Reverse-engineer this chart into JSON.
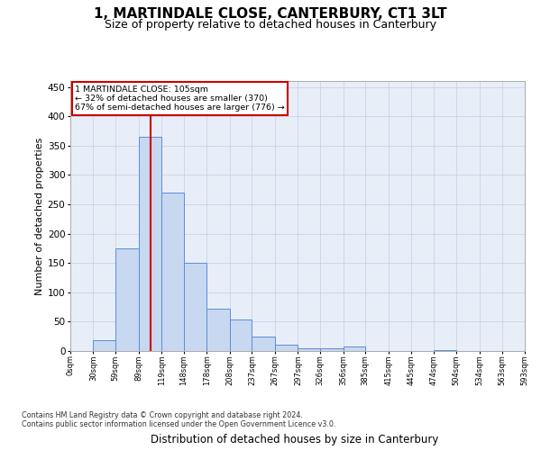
{
  "title": "1, MARTINDALE CLOSE, CANTERBURY, CT1 3LT",
  "subtitle": "Size of property relative to detached houses in Canterbury",
  "xlabel": "Distribution of detached houses by size in Canterbury",
  "ylabel": "Number of detached properties",
  "annotation_line1": "1 MARTINDALE CLOSE: 105sqm",
  "annotation_line2": "← 32% of detached houses are smaller (370)",
  "annotation_line3": "67% of semi-detached houses are larger (776) →",
  "bar_heights": [
    0,
    18,
    175,
    365,
    270,
    150,
    72,
    53,
    24,
    10,
    5,
    5,
    7,
    0,
    0,
    0,
    1,
    0,
    0,
    0
  ],
  "bin_edges": [
    0,
    30,
    59,
    89,
    119,
    148,
    178,
    208,
    237,
    267,
    297,
    326,
    356,
    385,
    415,
    445,
    474,
    504,
    534,
    563,
    593
  ],
  "tick_labels": [
    "0sqm",
    "30sqm",
    "59sqm",
    "89sqm",
    "119sqm",
    "148sqm",
    "178sqm",
    "208sqm",
    "237sqm",
    "267sqm",
    "297sqm",
    "326sqm",
    "356sqm",
    "385sqm",
    "415sqm",
    "445sqm",
    "474sqm",
    "504sqm",
    "534sqm",
    "563sqm",
    "593sqm"
  ],
  "bar_color": "#c8d8f0",
  "bar_edge_color": "#5b8dd9",
  "vline_x": 105,
  "vline_color": "#cc0000",
  "ylim_max": 460,
  "yticks": [
    0,
    50,
    100,
    150,
    200,
    250,
    300,
    350,
    400,
    450
  ],
  "grid_color": "#c8d4e8",
  "bg_color": "#e8eef8",
  "footnote1": "Contains HM Land Registry data © Crown copyright and database right 2024.",
  "footnote2": "Contains public sector information licensed under the Open Government Licence v3.0."
}
